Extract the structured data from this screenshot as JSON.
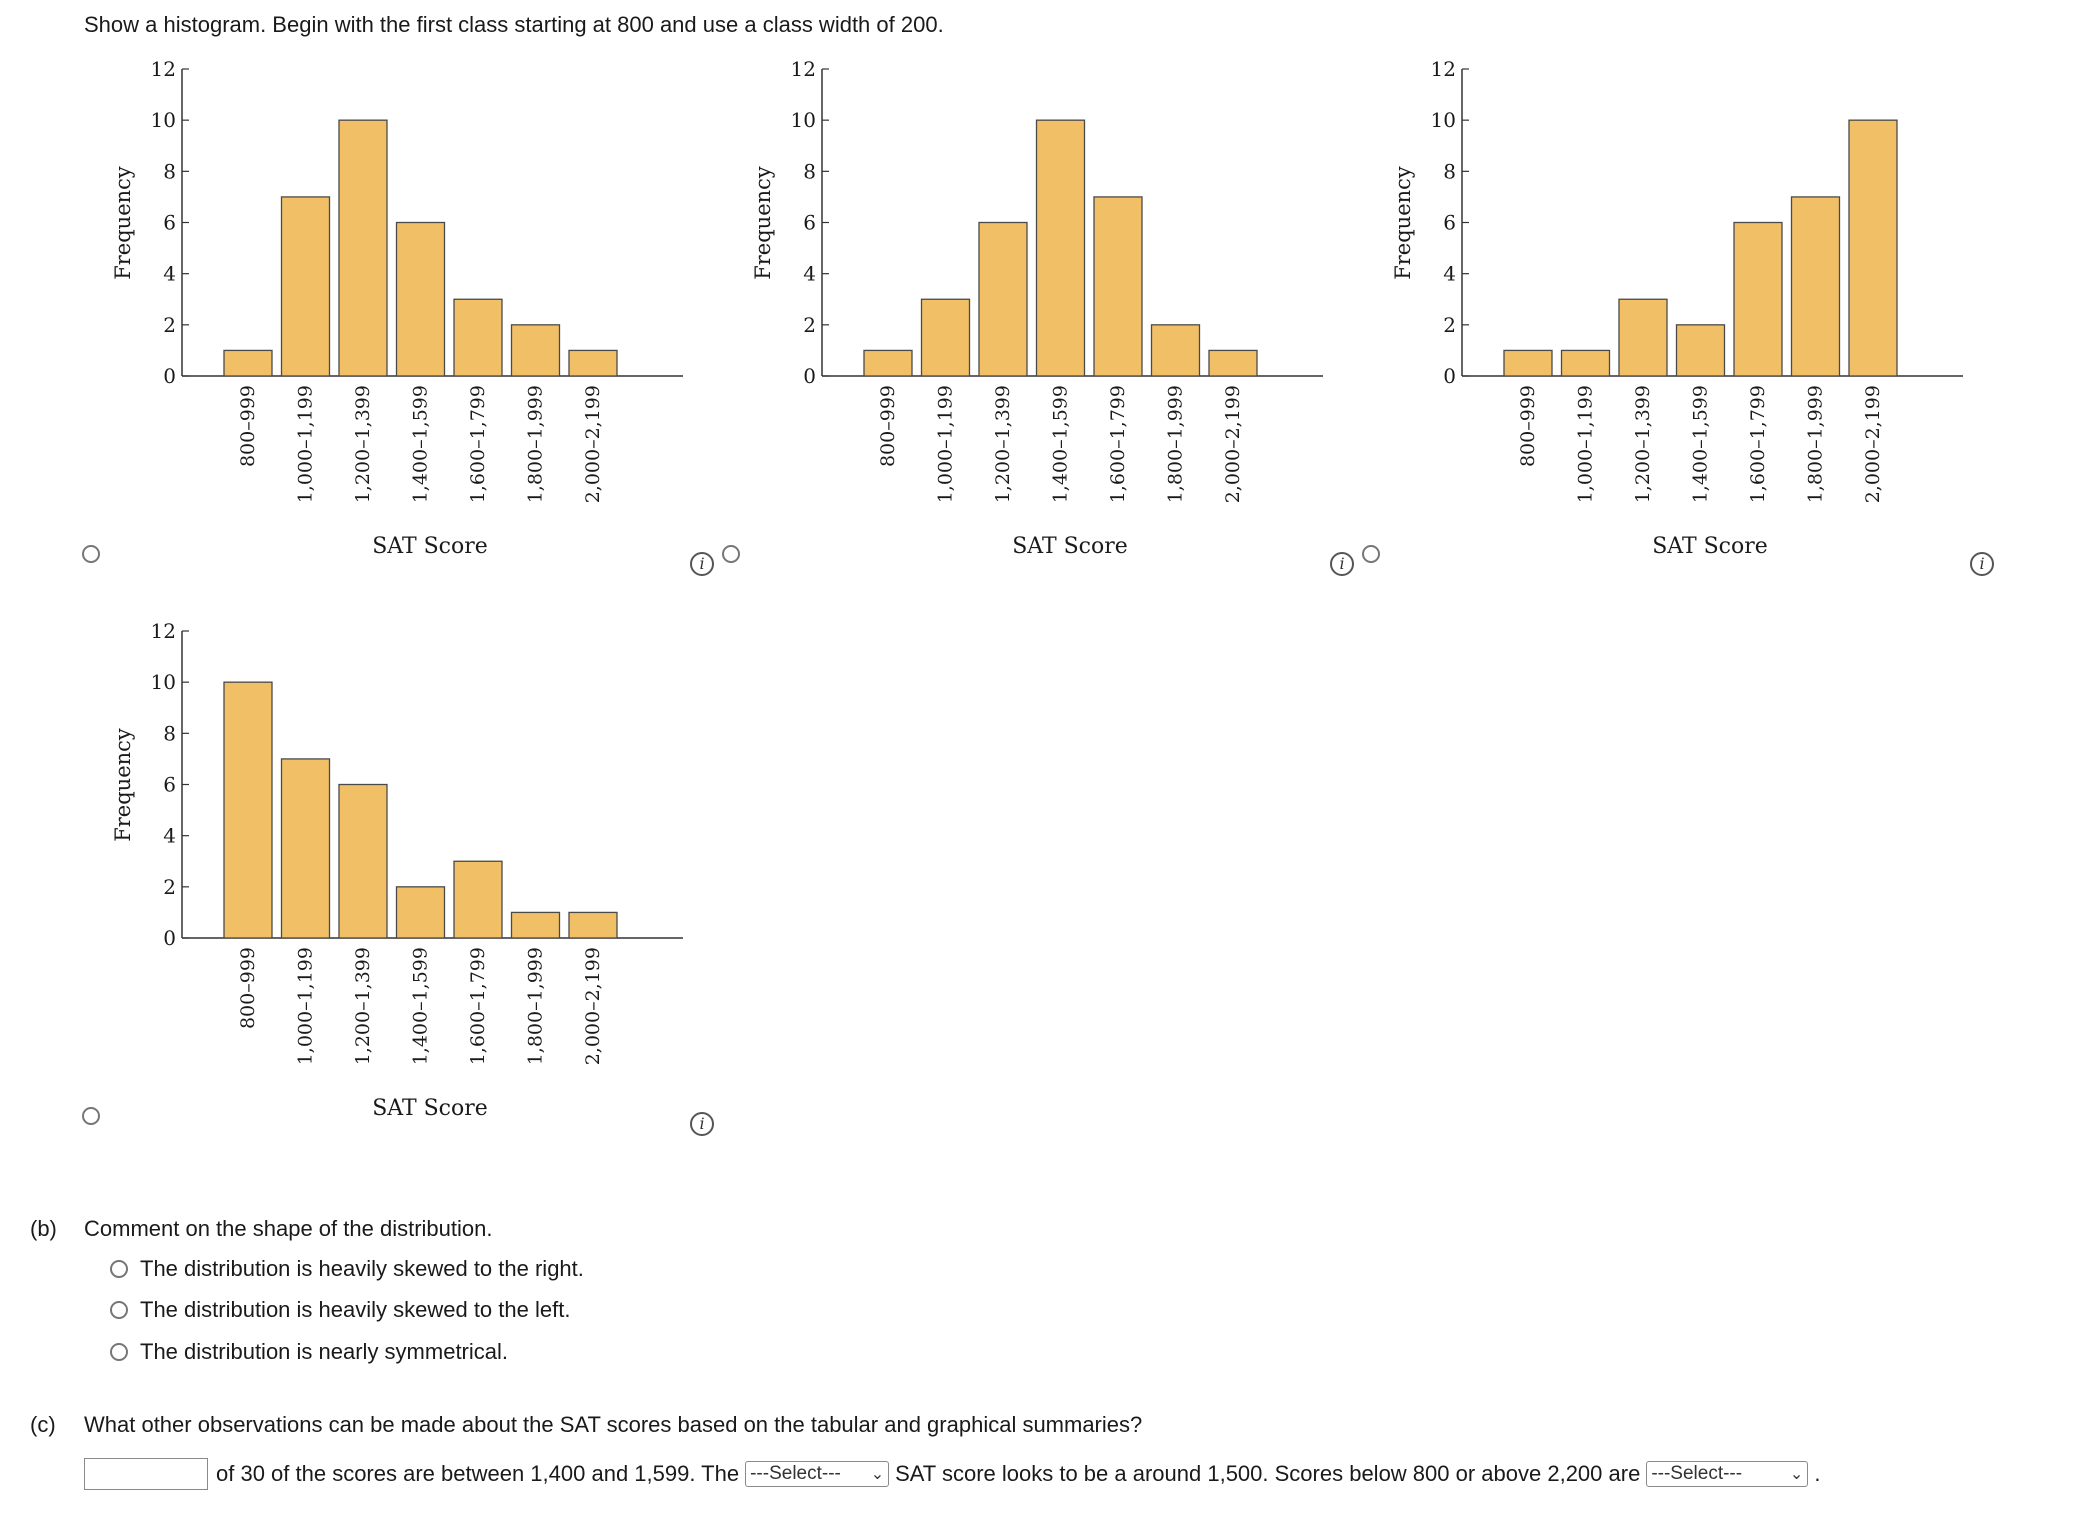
{
  "prompt": "Show a histogram. Begin with the first class starting at 800 and use a class width of 200.",
  "histogram_common": {
    "ylabel": "Frequency",
    "xlabel": "SAT Score",
    "info_symbol": "i"
  },
  "chart_data": [
    {
      "type": "bar",
      "title": "",
      "xlabel": "SAT Score",
      "ylabel": "Frequency",
      "ylim": [
        0,
        12
      ],
      "yticks": [
        0,
        2,
        4,
        6,
        8,
        10,
        12
      ],
      "categories": [
        "800–999",
        "1,000–1,199",
        "1,200–1,399",
        "1,400–1,599",
        "1,600–1,799",
        "1,800–1,999",
        "2,000–2,199"
      ],
      "values": [
        1,
        7,
        10,
        6,
        3,
        2,
        1
      ]
    },
    {
      "type": "bar",
      "title": "",
      "xlabel": "SAT Score",
      "ylabel": "Frequency",
      "ylim": [
        0,
        12
      ],
      "yticks": [
        0,
        2,
        4,
        6,
        8,
        10,
        12
      ],
      "categories": [
        "800–999",
        "1,000–1,199",
        "1,200–1,399",
        "1,400–1,599",
        "1,600–1,799",
        "1,800–1,999",
        "2,000–2,199"
      ],
      "values": [
        1,
        3,
        6,
        10,
        7,
        2,
        1
      ]
    },
    {
      "type": "bar",
      "title": "",
      "xlabel": "SAT Score",
      "ylabel": "Frequency",
      "ylim": [
        0,
        12
      ],
      "yticks": [
        0,
        2,
        4,
        6,
        8,
        10,
        12
      ],
      "categories": [
        "800–999",
        "1,000–1,199",
        "1,200–1,399",
        "1,400–1,599",
        "1,600–1,799",
        "1,800–1,999",
        "2,000–2,199"
      ],
      "values": [
        1,
        1,
        3,
        2,
        6,
        7,
        10
      ]
    },
    {
      "type": "bar",
      "title": "",
      "xlabel": "SAT Score",
      "ylabel": "Frequency",
      "ylim": [
        0,
        12
      ],
      "yticks": [
        0,
        2,
        4,
        6,
        8,
        10,
        12
      ],
      "categories": [
        "800–999",
        "1,000–1,199",
        "1,200–1,399",
        "1,400–1,599",
        "1,600–1,799",
        "1,800–1,999",
        "2,000–2,199"
      ],
      "values": [
        10,
        7,
        6,
        2,
        3,
        1,
        1
      ]
    }
  ],
  "colors": {
    "bar_fill": "#f0bf66",
    "bar_stroke": "#4a4a4a",
    "axis": "#333333"
  },
  "part_b": {
    "label": "(b)",
    "question": "Comment on the shape of the distribution.",
    "options": [
      "The distribution is heavily skewed to the right.",
      "The distribution is heavily skewed to the left.",
      "The distribution is nearly symmetrical."
    ]
  },
  "part_c": {
    "label": "(c)",
    "question": "What other observations can be made about the SAT scores based on the tabular and graphical summaries?",
    "input_value": "",
    "text_1": "of 30 of the scores are between 1,400 and 1,599. The",
    "select_1": "---Select---",
    "text_2": "SAT score looks to be a around 1,500. Scores below 800 or above 2,200 are",
    "select_2": "---Select---",
    "text_3": "."
  }
}
